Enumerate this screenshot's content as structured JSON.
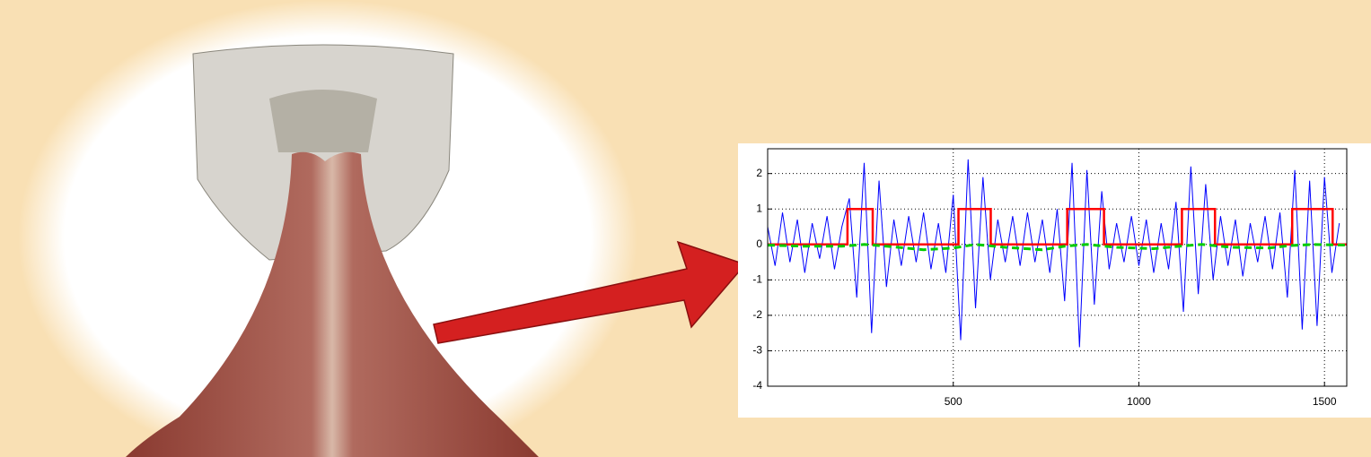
{
  "chart_data": {
    "type": "line",
    "xlim": [
      0,
      1560
    ],
    "xticks": [
      500,
      1000,
      1500
    ],
    "ylim": [
      -4,
      2.7
    ],
    "yticks": [
      -4,
      -3,
      -2,
      -1,
      0,
      1,
      2
    ],
    "grid": true,
    "series": [
      {
        "color": "#0000ff",
        "style": "solid",
        "x": [
          0,
          20,
          40,
          60,
          80,
          100,
          120,
          140,
          160,
          180,
          200,
          220,
          240,
          260,
          280,
          300,
          320,
          340,
          360,
          380,
          400,
          420,
          440,
          460,
          480,
          500,
          520,
          540,
          560,
          580,
          600,
          620,
          640,
          660,
          680,
          700,
          720,
          740,
          760,
          780,
          800,
          820,
          840,
          860,
          880,
          900,
          920,
          940,
          960,
          980,
          1000,
          1020,
          1040,
          1060,
          1080,
          1100,
          1120,
          1140,
          1160,
          1180,
          1200,
          1220,
          1240,
          1260,
          1280,
          1300,
          1320,
          1340,
          1360,
          1380,
          1400,
          1420,
          1440,
          1460,
          1480,
          1500,
          1520,
          1540
        ],
        "values": [
          0.5,
          -0.6,
          0.9,
          -0.5,
          0.7,
          -0.8,
          0.6,
          -0.4,
          0.8,
          -0.7,
          0.5,
          1.3,
          -1.5,
          2.3,
          -2.5,
          1.8,
          -1.2,
          0.7,
          -0.6,
          0.8,
          -0.5,
          0.9,
          -0.7,
          0.6,
          -0.8,
          1.4,
          -2.7,
          2.4,
          -1.8,
          1.9,
          -1.0,
          0.7,
          -0.5,
          0.8,
          -0.6,
          0.9,
          -0.5,
          0.7,
          -0.8,
          1.0,
          -1.6,
          2.3,
          -2.9,
          2.1,
          -1.7,
          1.5,
          -0.7,
          0.6,
          -0.5,
          0.8,
          -0.6,
          0.7,
          -0.8,
          0.6,
          -0.7,
          1.2,
          -1.9,
          2.2,
          -1.4,
          1.7,
          -1.0,
          0.8,
          -0.6,
          0.7,
          -0.9,
          0.6,
          -0.5,
          0.8,
          -0.7,
          0.9,
          -1.5,
          2.1,
          -2.4,
          1.8,
          -2.3,
          1.9,
          -0.8,
          0.6
        ]
      },
      {
        "color": "#ff0000",
        "style": "solid",
        "x": [
          0,
          215,
          215,
          283,
          283,
          514,
          514,
          601,
          601,
          807,
          807,
          906,
          906,
          1116,
          1116,
          1205,
          1205,
          1413,
          1413,
          1522,
          1522,
          1560
        ],
        "values": [
          0,
          0,
          1,
          1,
          0,
          0,
          1,
          1,
          0,
          0,
          1,
          1,
          0,
          0,
          1,
          1,
          0,
          0,
          1,
          1,
          0,
          0
        ]
      },
      {
        "color": "#00cc00",
        "style": "dashed",
        "x": [
          0,
          100,
          200,
          260,
          320,
          420,
          500,
          560,
          640,
          740,
          800,
          860,
          940,
          1040,
          1110,
          1170,
          1250,
          1350,
          1410,
          1470,
          1560
        ],
        "values": [
          -0.02,
          -0.05,
          -0.05,
          0.0,
          -0.05,
          -0.15,
          -0.1,
          0.0,
          -0.08,
          -0.15,
          -0.05,
          0.0,
          -0.08,
          -0.12,
          -0.05,
          0.0,
          -0.08,
          -0.1,
          -0.03,
          0.0,
          -0.02
        ]
      }
    ]
  }
}
